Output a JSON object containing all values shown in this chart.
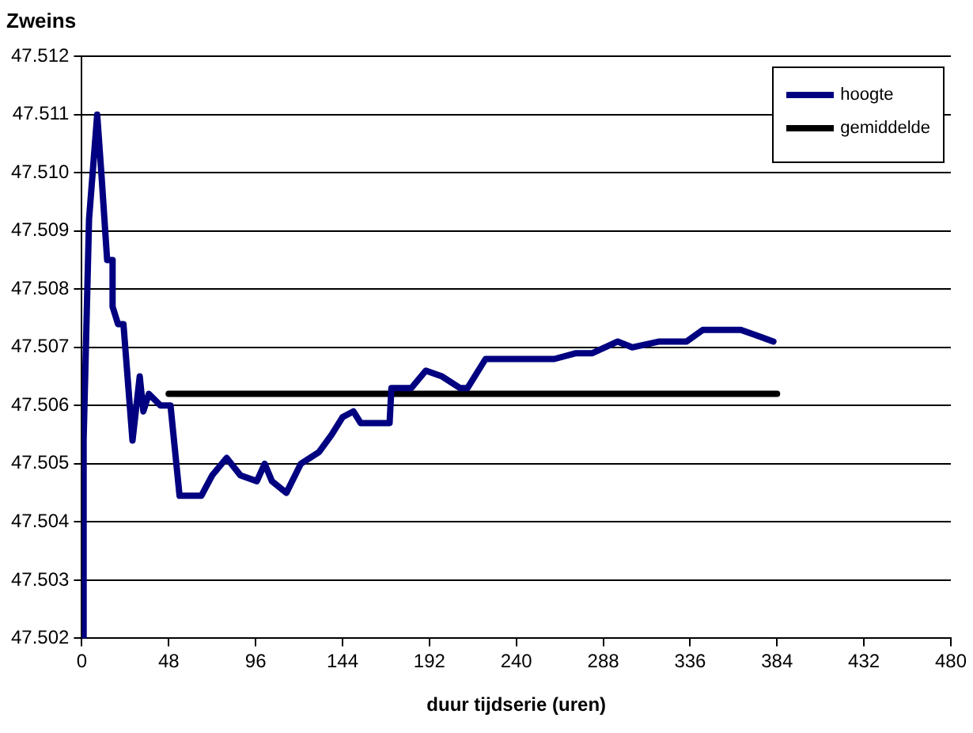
{
  "chart_data": {
    "type": "line",
    "title": "Zweins",
    "xlabel": "duur tijdserie (uren)",
    "xlim": [
      0,
      480
    ],
    "xticks": [
      0,
      48,
      96,
      144,
      192,
      240,
      288,
      336,
      384,
      432,
      480
    ],
    "ylim": [
      47.502,
      47.512
    ],
    "yticks": [
      47.502,
      47.503,
      47.504,
      47.505,
      47.506,
      47.507,
      47.508,
      47.509,
      {
        "value": 47.51,
        "label": "47.510"
      },
      47.511,
      47.512
    ],
    "grid": "y",
    "legend": "top right",
    "marker": "none",
    "line_style": "solid",
    "series": [
      {
        "name": "hoogte",
        "color": "#000080",
        "x": [
          1,
          1,
          4,
          8.5,
          11,
          14,
          17,
          17,
          20,
          23,
          28,
          32,
          34,
          37,
          43.5,
          49,
          54,
          66,
          72,
          80,
          87.6,
          96.7,
          101,
          105,
          113,
          121,
          131,
          138,
          144,
          150,
          154,
          167,
          170,
          171,
          182,
          190,
          199,
          209,
          213,
          223,
          240,
          261,
          273,
          282,
          296,
          304,
          319,
          334,
          343,
          355,
          364,
          373,
          382
        ],
        "values": [
          47.502,
          47.5054,
          47.5092,
          47.511,
          47.5099,
          47.5085,
          47.5085,
          47.5077,
          47.5074,
          47.5074,
          47.5054,
          47.5065,
          47.5059,
          47.5062,
          47.506,
          47.506,
          47.50445,
          47.50445,
          47.5048,
          47.5051,
          47.5048,
          47.5047,
          47.505,
          47.5047,
          47.5045,
          47.505,
          47.5052,
          47.5055,
          47.5058,
          47.5059,
          47.5057,
          47.5057,
          47.5057,
          47.5063,
          47.5063,
          47.5066,
          47.5065,
          47.5063,
          47.5063,
          47.5068,
          47.5068,
          47.5068,
          47.5069,
          47.5069,
          47.5071,
          47.507,
          47.5071,
          47.5071,
          47.5073,
          47.5073,
          47.5073,
          47.5072,
          47.5071
        ]
      },
      {
        "name": "gemiddelde",
        "color": "#000000",
        "x": [
          48,
          384
        ],
        "values": [
          47.5062,
          47.5062
        ]
      }
    ]
  }
}
